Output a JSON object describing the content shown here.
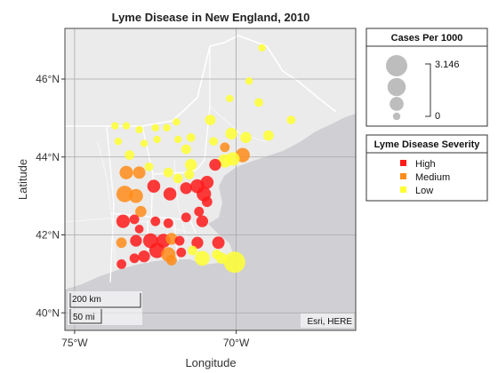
{
  "chart_data": {
    "type": "scatter",
    "subtype": "geographic-bubble",
    "title": "Lyme Disease in New England, 2010",
    "xlabel": "Longitude",
    "ylabel": "Latitude",
    "xlim": [
      -75.3,
      -66.3
    ],
    "ylim": [
      39.55,
      47.3
    ],
    "x_ticks": [
      -75,
      -70
    ],
    "x_tick_labels": [
      "75°W",
      "70°W"
    ],
    "y_ticks": [
      40,
      42,
      44,
      46
    ],
    "y_tick_labels": [
      "40°N",
      "42°N",
      "44°N",
      "46°N"
    ],
    "grid": true,
    "basemap_attribution": "Esri, HERE",
    "scalebar": {
      "km_label": "200 km",
      "mi_label": "50 mi"
    },
    "size_legend": {
      "title": "Cases Per 1000",
      "max_label": "3.146",
      "min_label": "0",
      "steps": [
        3.146,
        2.1,
        1.0,
        0.1
      ]
    },
    "color_legend": {
      "title": "Lyme Disease Severity",
      "categories": [
        {
          "name": "High",
          "color": "#ff1a1a"
        },
        {
          "name": "Medium",
          "color": "#ff8c1a"
        },
        {
          "name": "Low",
          "color": "#ffff33"
        }
      ]
    },
    "points": [
      {
        "lon": -69.2,
        "lat": 46.8,
        "cases": 0.1,
        "severity": "Low"
      },
      {
        "lon": -69.6,
        "lat": 45.95,
        "cases": 0.1,
        "severity": "Low"
      },
      {
        "lon": -70.2,
        "lat": 45.5,
        "cases": 0.1,
        "severity": "Low"
      },
      {
        "lon": -69.3,
        "lat": 45.4,
        "cases": 0.2,
        "severity": "Low"
      },
      {
        "lon": -70.8,
        "lat": 44.95,
        "cases": 0.4,
        "severity": "Low"
      },
      {
        "lon": -70.15,
        "lat": 44.6,
        "cases": 0.6,
        "severity": "Low"
      },
      {
        "lon": -68.3,
        "lat": 44.95,
        "cases": 0.2,
        "severity": "Low"
      },
      {
        "lon": -69.0,
        "lat": 44.55,
        "cases": 0.4,
        "severity": "Low"
      },
      {
        "lon": -69.7,
        "lat": 44.5,
        "cases": 0.5,
        "severity": "Low"
      },
      {
        "lon": -70.35,
        "lat": 44.25,
        "cases": 0.3,
        "severity": "Medium"
      },
      {
        "lon": -70.7,
        "lat": 44.4,
        "cases": 0.2,
        "severity": "Low"
      },
      {
        "lon": -69.8,
        "lat": 44.05,
        "cases": 1.1,
        "severity": "Medium"
      },
      {
        "lon": -70.1,
        "lat": 43.95,
        "cases": 0.9,
        "severity": "Low"
      },
      {
        "lon": -70.35,
        "lat": 43.9,
        "cases": 0.9,
        "severity": "Low"
      },
      {
        "lon": -70.65,
        "lat": 43.8,
        "cases": 0.6,
        "severity": "High"
      },
      {
        "lon": -71.4,
        "lat": 44.5,
        "cases": 0.2,
        "severity": "Low"
      },
      {
        "lon": -71.55,
        "lat": 44.2,
        "cases": 0.3,
        "severity": "Low"
      },
      {
        "lon": -71.8,
        "lat": 44.45,
        "cases": 0.1,
        "severity": "Low"
      },
      {
        "lon": -71.4,
        "lat": 43.8,
        "cases": 0.6,
        "severity": "Low"
      },
      {
        "lon": -71.45,
        "lat": 43.55,
        "cases": 0.3,
        "severity": "Low"
      },
      {
        "lon": -71.8,
        "lat": 43.45,
        "cases": 0.3,
        "severity": "Low"
      },
      {
        "lon": -71.55,
        "lat": 43.2,
        "cases": 0.6,
        "severity": "High"
      },
      {
        "lon": -71.2,
        "lat": 43.25,
        "cases": 1.0,
        "severity": "High"
      },
      {
        "lon": -70.9,
        "lat": 43.35,
        "cases": 0.8,
        "severity": "High"
      },
      {
        "lon": -71.0,
        "lat": 43.05,
        "cases": 1.1,
        "severity": "High"
      },
      {
        "lon": -70.9,
        "lat": 42.85,
        "cases": 0.4,
        "severity": "High"
      },
      {
        "lon": -71.15,
        "lat": 42.6,
        "cases": 0.3,
        "severity": "High"
      },
      {
        "lon": -71.05,
        "lat": 42.35,
        "cases": 0.6,
        "severity": "High"
      },
      {
        "lon": -71.55,
        "lat": 42.45,
        "cases": 0.3,
        "severity": "High"
      },
      {
        "lon": -72.1,
        "lat": 42.3,
        "cases": 0.3,
        "severity": "High"
      },
      {
        "lon": -72.5,
        "lat": 42.35,
        "cases": 0.3,
        "severity": "High"
      },
      {
        "lon": -72.95,
        "lat": 42.6,
        "cases": 0.5,
        "severity": "Medium"
      },
      {
        "lon": -73.15,
        "lat": 42.4,
        "cases": 0.3,
        "severity": "High"
      },
      {
        "lon": -73.5,
        "lat": 42.35,
        "cases": 0.9,
        "severity": "High"
      },
      {
        "lon": -73.4,
        "lat": 43.6,
        "cases": 0.9,
        "severity": "Medium"
      },
      {
        "lon": -73.0,
        "lat": 43.6,
        "cases": 0.7,
        "severity": "Medium"
      },
      {
        "lon": -73.45,
        "lat": 43.05,
        "cases": 1.6,
        "severity": "Medium"
      },
      {
        "lon": -73.1,
        "lat": 43.0,
        "cases": 1.0,
        "severity": "Medium"
      },
      {
        "lon": -72.55,
        "lat": 43.25,
        "cases": 0.8,
        "severity": "High"
      },
      {
        "lon": -72.05,
        "lat": 43.05,
        "cases": 0.8,
        "severity": "High"
      },
      {
        "lon": -72.1,
        "lat": 43.6,
        "cases": 0.3,
        "severity": "Low"
      },
      {
        "lon": -72.7,
        "lat": 43.75,
        "cases": 0.2,
        "severity": "Low"
      },
      {
        "lon": -73.3,
        "lat": 44.05,
        "cases": 0.3,
        "severity": "Low"
      },
      {
        "lon": -72.85,
        "lat": 44.35,
        "cases": 0.1,
        "severity": "Low"
      },
      {
        "lon": -72.45,
        "lat": 44.45,
        "cases": 0.1,
        "severity": "Low"
      },
      {
        "lon": -73.0,
        "lat": 44.7,
        "cases": 0.1,
        "severity": "Low"
      },
      {
        "lon": -73.4,
        "lat": 44.8,
        "cases": 0.1,
        "severity": "Low"
      },
      {
        "lon": -72.5,
        "lat": 44.75,
        "cases": 0.1,
        "severity": "Low"
      },
      {
        "lon": -72.15,
        "lat": 44.75,
        "cases": 0.1,
        "severity": "Low"
      },
      {
        "lon": -71.85,
        "lat": 44.9,
        "cases": 0.1,
        "severity": "Low"
      },
      {
        "lon": -73.75,
        "lat": 44.8,
        "cases": 0.1,
        "severity": "Low"
      },
      {
        "lon": -73.65,
        "lat": 44.4,
        "cases": 0.1,
        "severity": "Low"
      },
      {
        "lon": -73.0,
        "lat": 42.15,
        "cases": 0.2,
        "severity": "High"
      },
      {
        "lon": -73.1,
        "lat": 41.85,
        "cases": 0.6,
        "severity": "High"
      },
      {
        "lon": -72.65,
        "lat": 41.85,
        "cases": 1.2,
        "severity": "High"
      },
      {
        "lon": -72.25,
        "lat": 41.85,
        "cases": 1.0,
        "severity": "High"
      },
      {
        "lon": -71.75,
        "lat": 41.85,
        "cases": 0.3,
        "severity": "High"
      },
      {
        "lon": -71.2,
        "lat": 41.8,
        "cases": 0.6,
        "severity": "High"
      },
      {
        "lon": -70.55,
        "lat": 41.8,
        "cases": 0.7,
        "severity": "High"
      },
      {
        "lon": -70.6,
        "lat": 41.5,
        "cases": 0.3,
        "severity": "Low"
      },
      {
        "lon": -71.35,
        "lat": 41.6,
        "cases": 0.3,
        "severity": "Low"
      },
      {
        "lon": -71.7,
        "lat": 41.55,
        "cases": 0.3,
        "severity": "High"
      },
      {
        "lon": -72.1,
        "lat": 41.5,
        "cases": 1.1,
        "severity": "Medium"
      },
      {
        "lon": -72.45,
        "lat": 41.6,
        "cases": 1.3,
        "severity": "High"
      },
      {
        "lon": -72.85,
        "lat": 41.45,
        "cases": 0.6,
        "severity": "High"
      },
      {
        "lon": -73.15,
        "lat": 41.4,
        "cases": 0.3,
        "severity": "High"
      },
      {
        "lon": -73.55,
        "lat": 41.25,
        "cases": 0.3,
        "severity": "High"
      },
      {
        "lon": -73.55,
        "lat": 41.8,
        "cases": 0.4,
        "severity": "Medium"
      },
      {
        "lon": -72.0,
        "lat": 41.35,
        "cases": 0.4,
        "severity": "Medium"
      },
      {
        "lon": -71.05,
        "lat": 41.4,
        "cases": 1.2,
        "severity": "Low"
      },
      {
        "lon": -70.05,
        "lat": 41.3,
        "cases": 3.146,
        "severity": "Low"
      },
      {
        "lon": -70.45,
        "lat": 41.4,
        "cases": 0.5,
        "severity": "Low"
      },
      {
        "lon": -72.0,
        "lat": 41.9,
        "cases": 0.6,
        "severity": "Medium"
      }
    ]
  }
}
